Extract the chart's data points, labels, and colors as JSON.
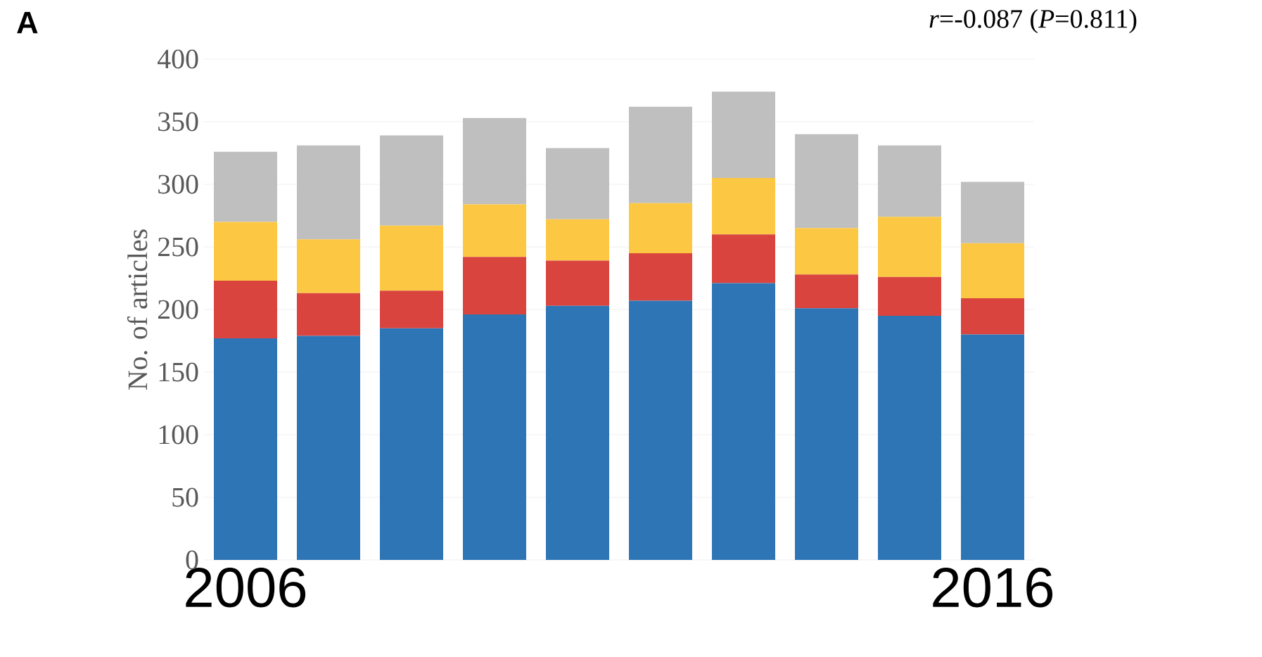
{
  "chart_data": {
    "type": "bar",
    "stacked": true,
    "title": "A",
    "ylabel": "No. of articles",
    "annotations": [
      "*r*=-0.087 (*P*=0.811)"
    ],
    "categories": [
      "2006",
      null,
      null,
      null,
      null,
      null,
      null,
      null,
      null,
      "2016"
    ],
    "series": [
      {
        "color": "#2e75b6",
        "values": [
          177,
          179,
          185,
          196,
          203,
          207,
          221,
          201,
          195,
          180
        ]
      },
      {
        "color": "#d9443f",
        "values": [
          46,
          34,
          30,
          46,
          36,
          38,
          39,
          27,
          31,
          29
        ]
      },
      {
        "color": "#fcc843",
        "values": [
          47,
          43,
          52,
          42,
          33,
          40,
          45,
          37,
          48,
          44
        ]
      },
      {
        "color": "#bfbfbf",
        "values": [
          56,
          75,
          72,
          69,
          57,
          77,
          69,
          75,
          57,
          49
        ]
      }
    ],
    "ylim": [
      0,
      400
    ],
    "yticks": [
      0,
      50,
      100,
      150,
      200,
      250,
      300,
      350,
      400
    ],
    "grid": "y"
  }
}
